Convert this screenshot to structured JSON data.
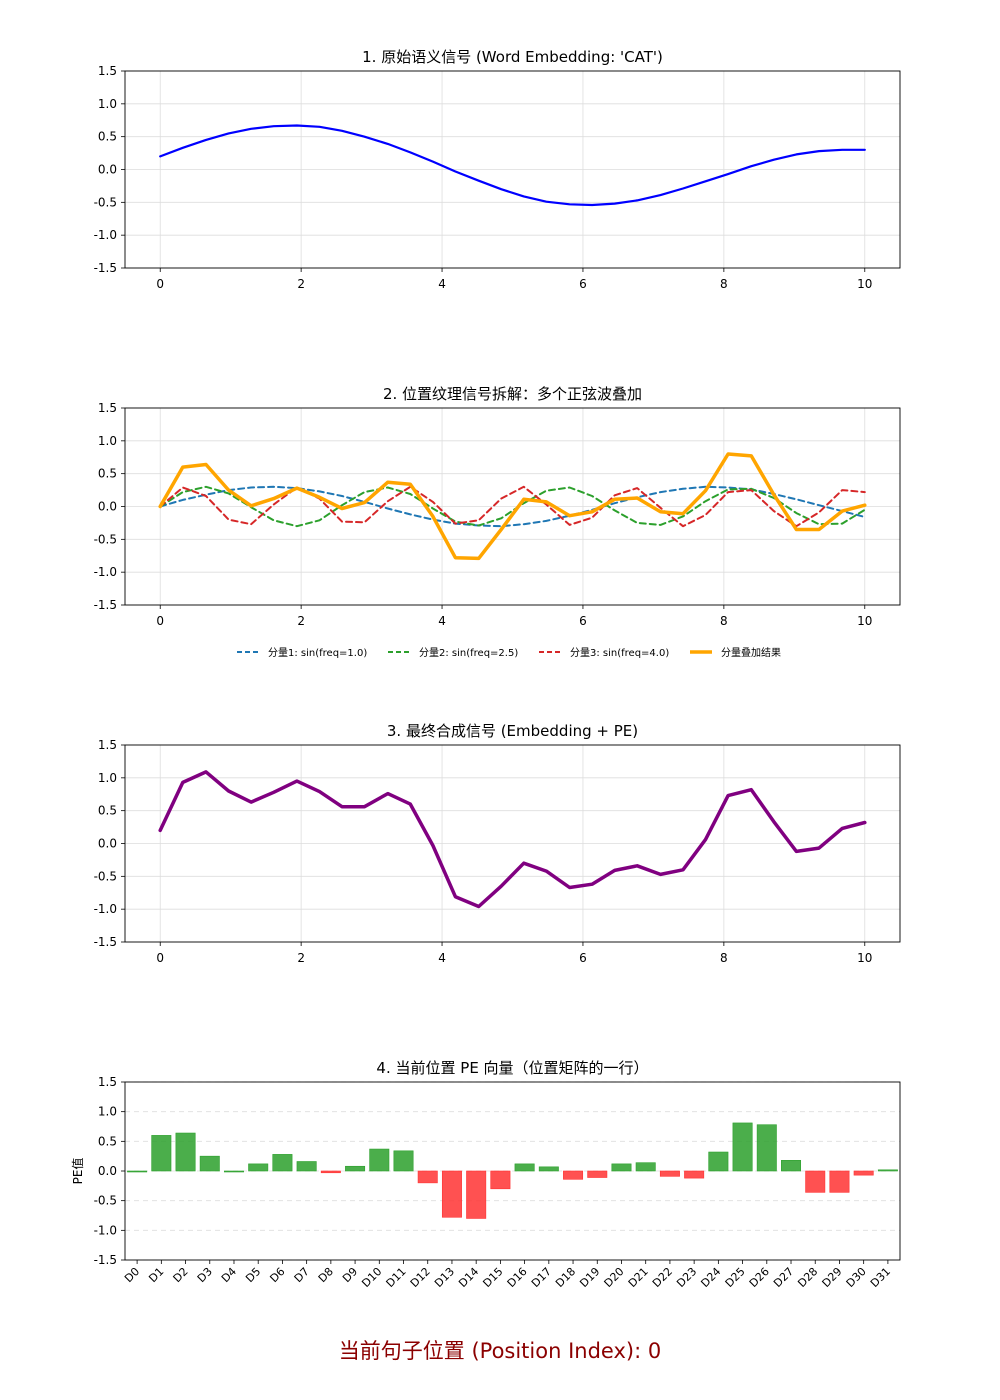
{
  "footer": "当前句子位置 (Position Index): 0",
  "chart_data": [
    {
      "type": "line",
      "title": "1. 原始语义信号 (Word Embedding: 'CAT')",
      "xlim": [
        -0.5,
        10.5
      ],
      "ylim": [
        -1.5,
        1.5
      ],
      "xticks": [
        "0",
        "2",
        "4",
        "6",
        "8",
        "10"
      ],
      "yticks": [
        "1.5",
        "1.0",
        "0.5",
        "0.0",
        "-0.5",
        "-1.0",
        "-1.5"
      ],
      "grid": true,
      "series": [
        {
          "color": "#0000ff",
          "x": [
            0,
            0.32,
            0.65,
            0.97,
            1.29,
            1.61,
            1.94,
            2.26,
            2.58,
            2.9,
            3.23,
            3.55,
            3.87,
            4.19,
            4.52,
            4.84,
            5.16,
            5.48,
            5.81,
            6.13,
            6.45,
            6.77,
            7.1,
            7.42,
            7.74,
            8.06,
            8.39,
            8.71,
            9.03,
            9.35,
            9.68,
            10
          ],
          "y": [
            0.2,
            0.33,
            0.45,
            0.55,
            0.62,
            0.66,
            0.67,
            0.65,
            0.59,
            0.5,
            0.39,
            0.26,
            0.12,
            -0.03,
            -0.17,
            -0.3,
            -0.41,
            -0.49,
            -0.53,
            -0.54,
            -0.52,
            -0.47,
            -0.39,
            -0.29,
            -0.18,
            -0.07,
            0.05,
            0.15,
            0.23,
            0.28,
            0.3,
            0.3
          ]
        }
      ]
    },
    {
      "type": "line",
      "title": "2. 位置纹理信号拆解：多个正弦波叠加",
      "xlim": [
        -0.5,
        10.5
      ],
      "ylim": [
        -1.5,
        1.5
      ],
      "xticks": [
        "0",
        "2",
        "4",
        "6",
        "8",
        "10"
      ],
      "yticks": [
        "1.5",
        "1.0",
        "0.5",
        "0.0",
        "-0.5",
        "-1.0",
        "-1.5"
      ],
      "grid": true,
      "legend_position": "bottom",
      "x": [
        0,
        0.32,
        0.65,
        0.97,
        1.29,
        1.61,
        1.94,
        2.26,
        2.58,
        2.9,
        3.23,
        3.55,
        3.87,
        4.19,
        4.52,
        4.84,
        5.16,
        5.48,
        5.81,
        6.13,
        6.45,
        6.77,
        7.1,
        7.42,
        7.74,
        8.06,
        8.39,
        8.71,
        9.03,
        9.35,
        9.68,
        10
      ],
      "series": [
        {
          "name": "分量1: sin(freq=1.0)",
          "color": "#1f77b4",
          "dashed": true,
          "width": 2,
          "values": [
            0,
            0.1,
            0.18,
            0.25,
            0.29,
            0.3,
            0.28,
            0.23,
            0.16,
            0.07,
            -0.03,
            -0.12,
            -0.2,
            -0.26,
            -0.29,
            -0.3,
            -0.27,
            -0.22,
            -0.14,
            -0.05,
            0.05,
            0.14,
            0.22,
            0.27,
            0.3,
            0.29,
            0.26,
            0.19,
            0.11,
            0.02,
            -0.07,
            -0.16
          ]
        },
        {
          "name": "分量2: sin(freq=2.5)",
          "color": "#2ca02c",
          "dashed": true,
          "width": 2,
          "values": [
            0,
            0.22,
            0.3,
            0.2,
            -0.01,
            -0.21,
            -0.3,
            -0.21,
            0.02,
            0.22,
            0.29,
            0.19,
            -0.03,
            -0.23,
            -0.29,
            -0.18,
            0.05,
            0.24,
            0.29,
            0.16,
            -0.06,
            -0.25,
            -0.28,
            -0.15,
            0.08,
            0.26,
            0.27,
            0.13,
            -0.1,
            -0.27,
            -0.26,
            -0.05
          ]
        },
        {
          "name": "分量3: sin(freq=4.0)",
          "color": "#d62728",
          "dashed": true,
          "width": 2,
          "values": [
            0,
            0.29,
            0.16,
            -0.2,
            -0.27,
            0.03,
            0.29,
            0.12,
            -0.23,
            -0.24,
            0.08,
            0.3,
            0.07,
            -0.26,
            -0.21,
            0.12,
            0.3,
            0.03,
            -0.28,
            -0.17,
            0.17,
            0.28,
            -0.02,
            -0.3,
            -0.13,
            0.22,
            0.25,
            -0.07,
            -0.3,
            -0.09,
            0.25,
            0.22
          ]
        },
        {
          "name": "分量叠加结果",
          "color": "#ffa500",
          "dashed": false,
          "width": 3.5,
          "values": [
            0,
            0.6,
            0.64,
            0.25,
            0.01,
            0.12,
            0.28,
            0.14,
            -0.03,
            0.06,
            0.37,
            0.34,
            -0.15,
            -0.78,
            -0.79,
            -0.35,
            0.11,
            0.07,
            -0.14,
            -0.08,
            0.11,
            0.13,
            -0.08,
            -0.11,
            0.24,
            0.8,
            0.77,
            0.18,
            -0.35,
            -0.35,
            -0.07,
            0.02
          ]
        }
      ]
    },
    {
      "type": "line",
      "title": "3. 最终合成信号 (Embedding + PE)",
      "xlim": [
        -0.5,
        10.5
      ],
      "ylim": [
        -1.5,
        1.5
      ],
      "xticks": [
        "0",
        "2",
        "4",
        "6",
        "8",
        "10"
      ],
      "yticks": [
        "1.5",
        "1.0",
        "0.5",
        "0.0",
        "-0.5",
        "-1.0",
        "-1.5"
      ],
      "grid": true,
      "series": [
        {
          "color": "#800080",
          "x": [
            0,
            0.32,
            0.65,
            0.97,
            1.29,
            1.61,
            1.94,
            2.26,
            2.58,
            2.9,
            3.23,
            3.55,
            3.87,
            4.19,
            4.52,
            4.84,
            5.16,
            5.48,
            5.81,
            6.13,
            6.45,
            6.77,
            7.1,
            7.42,
            7.74,
            8.06,
            8.39,
            8.71,
            9.03,
            9.35,
            9.68,
            10
          ],
          "y": [
            0.2,
            0.93,
            1.09,
            0.8,
            0.63,
            0.78,
            0.95,
            0.79,
            0.56,
            0.56,
            0.76,
            0.6,
            -0.03,
            -0.81,
            -0.96,
            -0.65,
            -0.3,
            -0.42,
            -0.67,
            -0.62,
            -0.41,
            -0.34,
            -0.47,
            -0.4,
            0.06,
            0.73,
            0.82,
            0.33,
            -0.12,
            -0.07,
            0.23,
            0.32
          ]
        }
      ]
    },
    {
      "type": "bar",
      "title": "4. 当前位置 PE 向量（位置矩阵的一行）",
      "ylabel": "PE值",
      "ylim": [
        -1.5,
        1.5
      ],
      "yticks": [
        "1.5",
        "1.0",
        "0.5",
        "0.0",
        "-0.5",
        "-1.0",
        "-1.5"
      ],
      "grid": "y-dashed",
      "positive_color": "#2ca02c",
      "negative_color": "#ff3333",
      "categories": [
        "D0",
        "D1",
        "D2",
        "D3",
        "D4",
        "D5",
        "D6",
        "D7",
        "D8",
        "D9",
        "D10",
        "D11",
        "D12",
        "D13",
        "D14",
        "D15",
        "D16",
        "D17",
        "D18",
        "D19",
        "D20",
        "D21",
        "D22",
        "D23",
        "D24",
        "D25",
        "D26",
        "D27",
        "D28",
        "D29",
        "D30",
        "D31"
      ],
      "values": [
        0,
        0.6,
        0.64,
        0.25,
        0.0,
        0.12,
        0.28,
        0.16,
        -0.03,
        0.08,
        0.37,
        0.34,
        -0.2,
        -0.78,
        -0.8,
        -0.3,
        0.12,
        0.07,
        -0.14,
        -0.11,
        0.12,
        0.14,
        -0.09,
        -0.12,
        0.32,
        0.81,
        0.78,
        0.18,
        -0.36,
        -0.36,
        -0.07,
        0.02
      ]
    }
  ]
}
